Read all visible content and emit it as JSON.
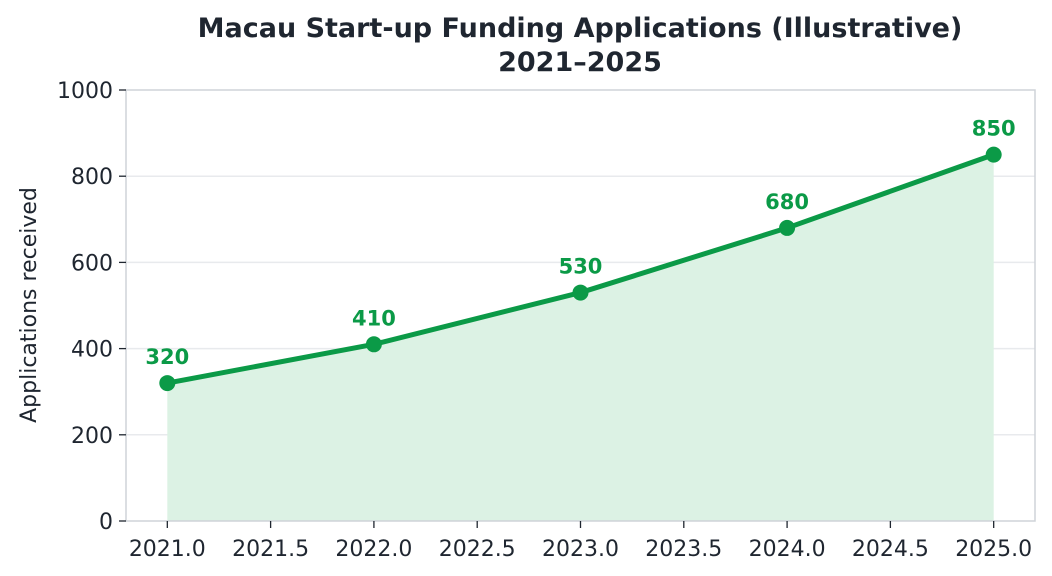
{
  "chart_data": {
    "type": "area",
    "title_lines": [
      "Macau Start-up Funding Applications (Illustrative)",
      "2021–2025"
    ],
    "xlabel": "",
    "ylabel": "Applications received",
    "x": [
      2021,
      2022,
      2023,
      2024,
      2025
    ],
    "values": [
      320,
      410,
      530,
      680,
      850
    ],
    "data_labels": [
      "320",
      "410",
      "530",
      "680",
      "850"
    ],
    "xlim": [
      2020.8,
      2025.2
    ],
    "ylim": [
      0,
      1000
    ],
    "x_ticks": [
      2021.0,
      2021.5,
      2022.0,
      2022.5,
      2023.0,
      2023.5,
      2024.0,
      2024.5,
      2025.0
    ],
    "x_tick_labels": [
      "2021.0",
      "2021.5",
      "2022.0",
      "2022.5",
      "2023.0",
      "2023.5",
      "2024.0",
      "2024.5",
      "2025.0"
    ],
    "y_ticks": [
      0,
      200,
      400,
      600,
      800,
      1000
    ],
    "y_tick_labels": [
      "0",
      "200",
      "400",
      "600",
      "800",
      "1000"
    ],
    "grid": true,
    "colors": {
      "line": "#0b9a47",
      "fill": "#dcf2e4",
      "axis": "#cfd3d8",
      "grid": "#e8eaed",
      "text": "#1f2630"
    }
  }
}
